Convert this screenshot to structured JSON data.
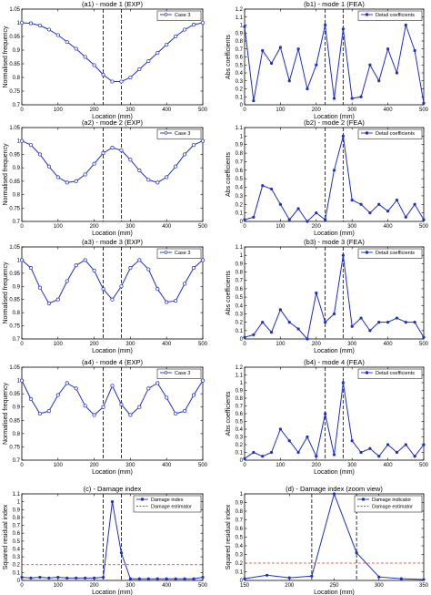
{
  "colors": {
    "series": "#1f2fbf",
    "estimator": "#e8322a",
    "frame": "#000000",
    "bound": "#000000"
  },
  "chart_data": [
    {
      "id": "a1",
      "type": "line",
      "title": "(a1)  -  mode 1 (EXP)",
      "xlabel": "Location (mm)",
      "ylabel": "Normalised frequency",
      "xlim": [
        0,
        500
      ],
      "ylim": [
        0.7,
        1.05
      ],
      "xticks": [
        "0",
        "100",
        "200",
        "300",
        "400",
        "500"
      ],
      "yticks": [
        "0.7",
        "0.75",
        "0.8",
        "0.85",
        "0.9",
        "0.95",
        "1",
        "1.05"
      ],
      "bounds": [
        225,
        275
      ],
      "legend": "top-right",
      "marker": "circle",
      "series": [
        {
          "name": "Case 3",
          "x": [
            0,
            25,
            50,
            75,
            100,
            125,
            150,
            175,
            200,
            225,
            250,
            275,
            300,
            325,
            350,
            375,
            400,
            425,
            450,
            475,
            500
          ],
          "y": [
            1.0,
            0.998,
            0.99,
            0.975,
            0.955,
            0.93,
            0.905,
            0.875,
            0.845,
            0.81,
            0.785,
            0.785,
            0.8,
            0.83,
            0.86,
            0.89,
            0.92,
            0.95,
            0.975,
            0.993,
            1.0
          ]
        }
      ]
    },
    {
      "id": "b1",
      "type": "line",
      "title": "(b1)  -  mode 1 (FEA)",
      "xlabel": "Location (mm)",
      "ylabel": "Abs coefficients",
      "xlim": [
        0,
        500
      ],
      "ylim": [
        0,
        1.2
      ],
      "xticks": [
        "0",
        "100",
        "200",
        "300",
        "400",
        "500"
      ],
      "yticks": [
        "0",
        "0.1",
        "0.2",
        "0.3",
        "0.4",
        "0.5",
        "0.6",
        "0.7",
        "0.8",
        "0.9",
        "1",
        "1.1",
        "1.2"
      ],
      "bounds": [
        225,
        275
      ],
      "legend": "top-right",
      "marker": "star",
      "series": [
        {
          "name": "Detail coefficients",
          "x": [
            0,
            25,
            50,
            75,
            100,
            125,
            150,
            175,
            200,
            225,
            250,
            275,
            300,
            325,
            350,
            375,
            400,
            425,
            450,
            475,
            500
          ],
          "y": [
            0.98,
            0.05,
            0.68,
            0.52,
            0.72,
            0.3,
            0.7,
            0.2,
            0.5,
            1.0,
            0.08,
            0.95,
            0.08,
            0.1,
            0.5,
            0.3,
            0.7,
            0.4,
            1.0,
            0.68,
            0.02
          ]
        }
      ]
    },
    {
      "id": "a2",
      "type": "line",
      "title": "(a2)  -  mode 2 (EXP)",
      "xlabel": "Location (mm)",
      "ylabel": "Normalised frequency",
      "xlim": [
        0,
        500
      ],
      "ylim": [
        0.7,
        1.05
      ],
      "xticks": [
        "0",
        "100",
        "200",
        "300",
        "400",
        "500"
      ],
      "yticks": [
        "0.7",
        "0.75",
        "0.8",
        "0.85",
        "0.9",
        "0.95",
        "1",
        "1.05"
      ],
      "bounds": [
        225,
        275
      ],
      "legend": "top-right",
      "marker": "circle",
      "series": [
        {
          "name": "Case 3",
          "x": [
            0,
            25,
            50,
            75,
            100,
            125,
            150,
            175,
            200,
            225,
            250,
            275,
            300,
            325,
            350,
            375,
            400,
            425,
            450,
            475,
            500
          ],
          "y": [
            1.0,
            0.985,
            0.95,
            0.905,
            0.865,
            0.845,
            0.85,
            0.875,
            0.915,
            0.955,
            0.975,
            0.965,
            0.93,
            0.89,
            0.855,
            0.845,
            0.865,
            0.905,
            0.95,
            0.985,
            1.0
          ]
        }
      ]
    },
    {
      "id": "b2",
      "type": "line",
      "title": "(b2)  -  mode 2 (FEA)",
      "xlabel": "Location (mm)",
      "ylabel": "Abs coefficients",
      "xlim": [
        0,
        500
      ],
      "ylim": [
        0,
        1.1
      ],
      "xticks": [
        "0",
        "100",
        "200",
        "300",
        "400",
        "500"
      ],
      "yticks": [
        "0",
        "0.1",
        "0.2",
        "0.3",
        "0.4",
        "0.5",
        "0.6",
        "0.7",
        "0.8",
        "0.9",
        "1",
        "1.1"
      ],
      "bounds": [
        225,
        275
      ],
      "legend": "top-right",
      "marker": "star",
      "series": [
        {
          "name": "Detail coefficients",
          "x": [
            0,
            25,
            50,
            75,
            100,
            125,
            150,
            175,
            200,
            225,
            250,
            275,
            300,
            325,
            350,
            375,
            400,
            425,
            450,
            475,
            500
          ],
          "y": [
            0.02,
            0.05,
            0.42,
            0.38,
            0.2,
            0.02,
            0.15,
            0.0,
            0.1,
            0.02,
            0.6,
            1.0,
            0.25,
            0.2,
            0.1,
            0.2,
            0.12,
            0.25,
            0.05,
            0.2,
            0.02
          ]
        }
      ]
    },
    {
      "id": "a3",
      "type": "line",
      "title": "(a3)  -  mode 3 (EXP)",
      "xlabel": "Location (mm)",
      "ylabel": "Normalised frequency",
      "xlim": [
        0,
        500
      ],
      "ylim": [
        0.7,
        1.05
      ],
      "xticks": [
        "0",
        "100",
        "200",
        "300",
        "400",
        "500"
      ],
      "yticks": [
        "0.7",
        "0.75",
        "0.8",
        "0.85",
        "0.9",
        "0.95",
        "1",
        "1.05"
      ],
      "bounds": [
        225,
        275
      ],
      "legend": "top-right",
      "marker": "circle",
      "series": [
        {
          "name": "Case 3",
          "x": [
            0,
            25,
            50,
            75,
            100,
            125,
            150,
            175,
            200,
            225,
            250,
            275,
            300,
            325,
            350,
            375,
            400,
            425,
            450,
            475,
            500
          ],
          "y": [
            1.0,
            0.97,
            0.895,
            0.835,
            0.85,
            0.92,
            0.98,
            1.0,
            0.96,
            0.89,
            0.85,
            0.9,
            0.97,
            1.0,
            0.965,
            0.89,
            0.84,
            0.845,
            0.91,
            0.97,
            1.0
          ]
        }
      ]
    },
    {
      "id": "b3",
      "type": "line",
      "title": "(b3)  -  mode 3 (FEA)",
      "xlabel": "Location (mm)",
      "ylabel": "Abs coefficients",
      "xlim": [
        0,
        500
      ],
      "ylim": [
        0,
        1.1
      ],
      "xticks": [
        "0",
        "100",
        "200",
        "300",
        "400",
        "500"
      ],
      "yticks": [
        "0",
        "0.1",
        "0.2",
        "0.3",
        "0.4",
        "0.5",
        "0.6",
        "0.7",
        "0.8",
        "0.9",
        "1",
        "1.1"
      ],
      "bounds": [
        225,
        275
      ],
      "legend": "top-right",
      "marker": "star",
      "series": [
        {
          "name": "Detail coefficients",
          "x": [
            0,
            25,
            50,
            75,
            100,
            125,
            150,
            175,
            200,
            225,
            250,
            275,
            300,
            325,
            350,
            375,
            400,
            425,
            450,
            475,
            500
          ],
          "y": [
            0.02,
            0.05,
            0.2,
            0.08,
            0.35,
            0.2,
            0.12,
            0.0,
            0.55,
            0.2,
            0.3,
            1.0,
            0.15,
            0.25,
            0.1,
            0.2,
            0.2,
            0.25,
            0.2,
            0.2,
            0.02
          ]
        }
      ]
    },
    {
      "id": "a4",
      "type": "line",
      "title": "(a4)  -  mode 4 (EXP)",
      "xlabel": "Location (mm)",
      "ylabel": "Normalised frequency",
      "xlim": [
        0,
        500
      ],
      "ylim": [
        0.7,
        1.05
      ],
      "xticks": [
        "0",
        "100",
        "200",
        "300",
        "400",
        "500"
      ],
      "yticks": [
        "0.7",
        "0.75",
        "0.8",
        "0.85",
        "0.9",
        "0.95",
        "1",
        "1.05"
      ],
      "bounds": [
        225,
        275
      ],
      "legend": "top-right",
      "marker": "circle",
      "series": [
        {
          "name": "Case 3",
          "x": [
            0,
            25,
            50,
            75,
            100,
            125,
            150,
            175,
            200,
            225,
            250,
            275,
            300,
            325,
            350,
            375,
            400,
            425,
            450,
            475,
            500
          ],
          "y": [
            1.0,
            0.93,
            0.875,
            0.885,
            0.945,
            0.99,
            0.97,
            0.905,
            0.87,
            0.9,
            0.98,
            0.91,
            0.87,
            0.9,
            0.97,
            0.99,
            0.935,
            0.875,
            0.885,
            0.945,
            1.0
          ]
        }
      ]
    },
    {
      "id": "b4",
      "type": "line",
      "title": "(b4)  -  mode 4 (FEA)",
      "xlabel": "Location (mm)",
      "ylabel": "Abs coefficients",
      "xlim": [
        0,
        500
      ],
      "ylim": [
        0,
        1.2
      ],
      "xticks": [
        "0",
        "100",
        "200",
        "300",
        "400",
        "500"
      ],
      "yticks": [
        "0",
        "0.1",
        "0.2",
        "0.3",
        "0.4",
        "0.5",
        "0.6",
        "0.7",
        "0.8",
        "0.9",
        "1",
        "1.1",
        "1.2"
      ],
      "bounds": [
        225,
        275
      ],
      "legend": "top-right",
      "marker": "star",
      "series": [
        {
          "name": "Detail coefficients",
          "x": [
            0,
            25,
            50,
            75,
            100,
            125,
            150,
            175,
            200,
            225,
            250,
            275,
            300,
            325,
            350,
            375,
            400,
            425,
            450,
            475,
            500
          ],
          "y": [
            0.02,
            0.1,
            0.05,
            0.1,
            0.4,
            0.25,
            0.1,
            0.3,
            0.05,
            0.6,
            0.07,
            1.0,
            0.25,
            0.1,
            0.15,
            0.05,
            0.2,
            0.1,
            0.2,
            0.05,
            0.2
          ]
        }
      ]
    },
    {
      "id": "c",
      "type": "line",
      "title": "(c)  -  Damage index",
      "xlabel": "Location (mm)",
      "ylabel": "Squared residual index",
      "xlim": [
        0,
        500
      ],
      "ylim": [
        0,
        1.1
      ],
      "xticks": [
        "0",
        "100",
        "200",
        "300",
        "400",
        "500"
      ],
      "yticks": [
        "0",
        "0.1",
        "0.2",
        "0.3",
        "0.4",
        "0.5",
        "0.6",
        "0.7",
        "0.8",
        "0.9",
        "1",
        "1.1"
      ],
      "bounds": [
        225,
        275
      ],
      "legend": "top-right",
      "marker": "star",
      "estimator": 0.2,
      "series": [
        {
          "name": "Damage index",
          "x": [
            0,
            25,
            50,
            75,
            100,
            125,
            150,
            175,
            200,
            225,
            250,
            275,
            300,
            325,
            350,
            375,
            400,
            425,
            450,
            475,
            500
          ],
          "y": [
            0.04,
            0.03,
            0.04,
            0.03,
            0.04,
            0.03,
            0.03,
            0.03,
            0.03,
            0.04,
            1.0,
            0.35,
            0.02,
            0.02,
            0.02,
            0.02,
            0.02,
            0.02,
            0.02,
            0.02,
            0.04
          ]
        }
      ],
      "estimator_name": "Damage estimator"
    },
    {
      "id": "d",
      "type": "line",
      "title": "(d)  -  Damage index (zoom view)",
      "xlabel": "Location (mm)",
      "ylabel": "Squared residual index",
      "xlim": [
        150,
        350
      ],
      "ylim": [
        0,
        1
      ],
      "xticks": [
        "150",
        "200",
        "250",
        "300",
        "350"
      ],
      "yticks": [
        "0",
        "0.1",
        "0.2",
        "0.3",
        "0.4",
        "0.5",
        "0.6",
        "0.7",
        "0.8",
        "0.9",
        "1"
      ],
      "bounds": [
        225,
        275
      ],
      "legend": "top-right",
      "marker": "star",
      "estimator": 0.2,
      "series": [
        {
          "name": "Damage indicator",
          "x": [
            150,
            175,
            200,
            225,
            250,
            275,
            300,
            325,
            350
          ],
          "y": [
            0.02,
            0.06,
            0.03,
            0.05,
            1.0,
            0.32,
            0.04,
            0.02,
            0.01
          ]
        }
      ],
      "estimator_name": "Damage estimator"
    }
  ]
}
